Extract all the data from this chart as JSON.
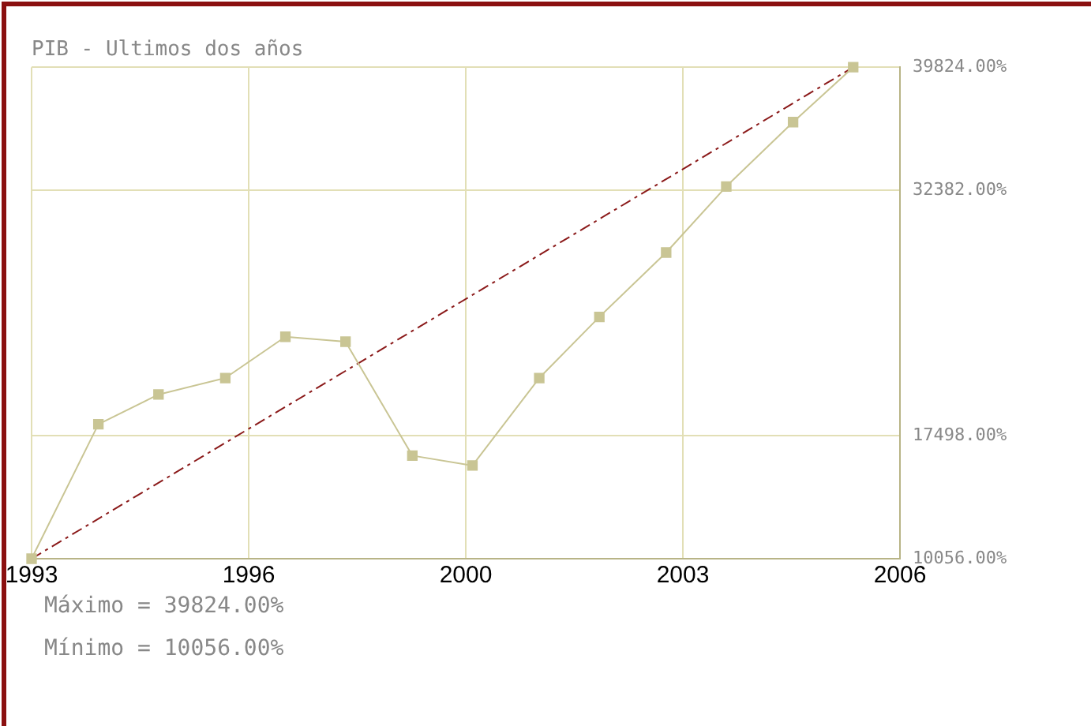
{
  "chart_data": {
    "type": "line",
    "title": "PIB - Ultimos dos años",
    "x": [
      1993,
      1994,
      1994.9,
      1995.9,
      1996.8,
      1997.7,
      1998.7,
      1999.6,
      2000.6,
      2001.5,
      2002.5,
      2003.4,
      2004.4,
      2005.3
    ],
    "xlim": [
      1993,
      2006
    ],
    "xticks": [
      1993,
      {
        "value": 1996.25,
        "label": "1996"
      },
      {
        "value": 1999.5,
        "label": "2000"
      },
      {
        "value": 2002.75,
        "label": "2003"
      },
      2006
    ],
    "ylim": [
      10056,
      39824
    ],
    "yticks": [
      {
        "value": 10056,
        "label": "10056.00%"
      },
      {
        "value": 17498,
        "label": "17498.00%"
      },
      {
        "value": 32382,
        "label": "32382.00%"
      },
      {
        "value": 39824,
        "label": "39824.00%"
      }
    ],
    "series": [
      {
        "color": "#c9c594",
        "values": [
          10056,
          18200,
          20000,
          21000,
          23500,
          23200,
          16300,
          15700,
          21000,
          24700,
          28600,
          32600,
          36500,
          39824
        ]
      },
      {
        "type": "line",
        "x": [
          1993,
          2005.3
        ],
        "values": [
          10056,
          39824
        ],
        "color": "#8b1a1a",
        "line_style": "dashed",
        "marker": "none"
      }
    ],
    "marker": "square",
    "grid": true,
    "legend": false,
    "annotations": [
      "Máximo = 39824.00%",
      "Mínimo = 10056.00%"
    ]
  }
}
